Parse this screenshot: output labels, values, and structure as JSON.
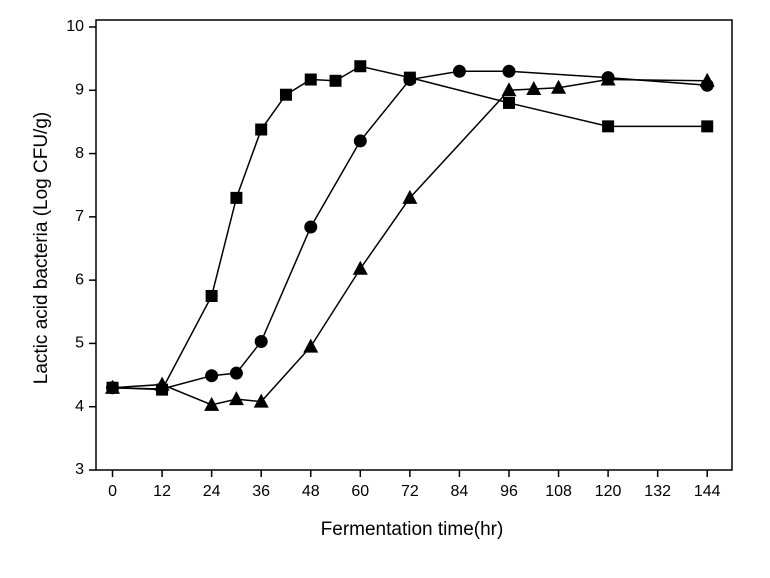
{
  "chart_data": {
    "type": "line",
    "x_label": "Fermentation time(hr)",
    "y_label": "Lactic acid bacteria (Log CFU/g)",
    "xlim": [
      -4,
      150
    ],
    "xticks": [
      0,
      12,
      24,
      36,
      48,
      60,
      72,
      84,
      96,
      108,
      120,
      132,
      144
    ],
    "ylim": [
      3,
      10
    ],
    "yticks": [
      3,
      4,
      5,
      6,
      7,
      8,
      9,
      10
    ],
    "series": [
      {
        "marker": "square",
        "color": "#000000",
        "x": [
          0,
          12,
          24,
          30,
          36,
          42,
          48,
          54,
          60,
          72,
          96,
          120,
          144
        ],
        "values": [
          4.3,
          4.27,
          5.75,
          7.3,
          8.38,
          8.93,
          9.17,
          9.15,
          9.38,
          9.2,
          8.8,
          8.43,
          8.43
        ]
      },
      {
        "marker": "circle",
        "color": "#000000",
        "x": [
          0,
          12,
          24,
          30,
          36,
          48,
          60,
          72,
          84,
          96,
          120,
          144
        ],
        "values": [
          4.3,
          4.28,
          4.49,
          4.53,
          5.03,
          6.84,
          8.2,
          9.17,
          9.3,
          9.3,
          9.2,
          9.08
        ]
      },
      {
        "marker": "triangle",
        "color": "#000000",
        "x": [
          0,
          12,
          24,
          30,
          36,
          48,
          60,
          72,
          96,
          102,
          108,
          120,
          144
        ],
        "values": [
          4.3,
          4.35,
          4.03,
          4.12,
          4.08,
          4.95,
          6.18,
          7.3,
          9.0,
          9.02,
          9.04,
          9.17,
          9.15
        ]
      }
    ]
  }
}
